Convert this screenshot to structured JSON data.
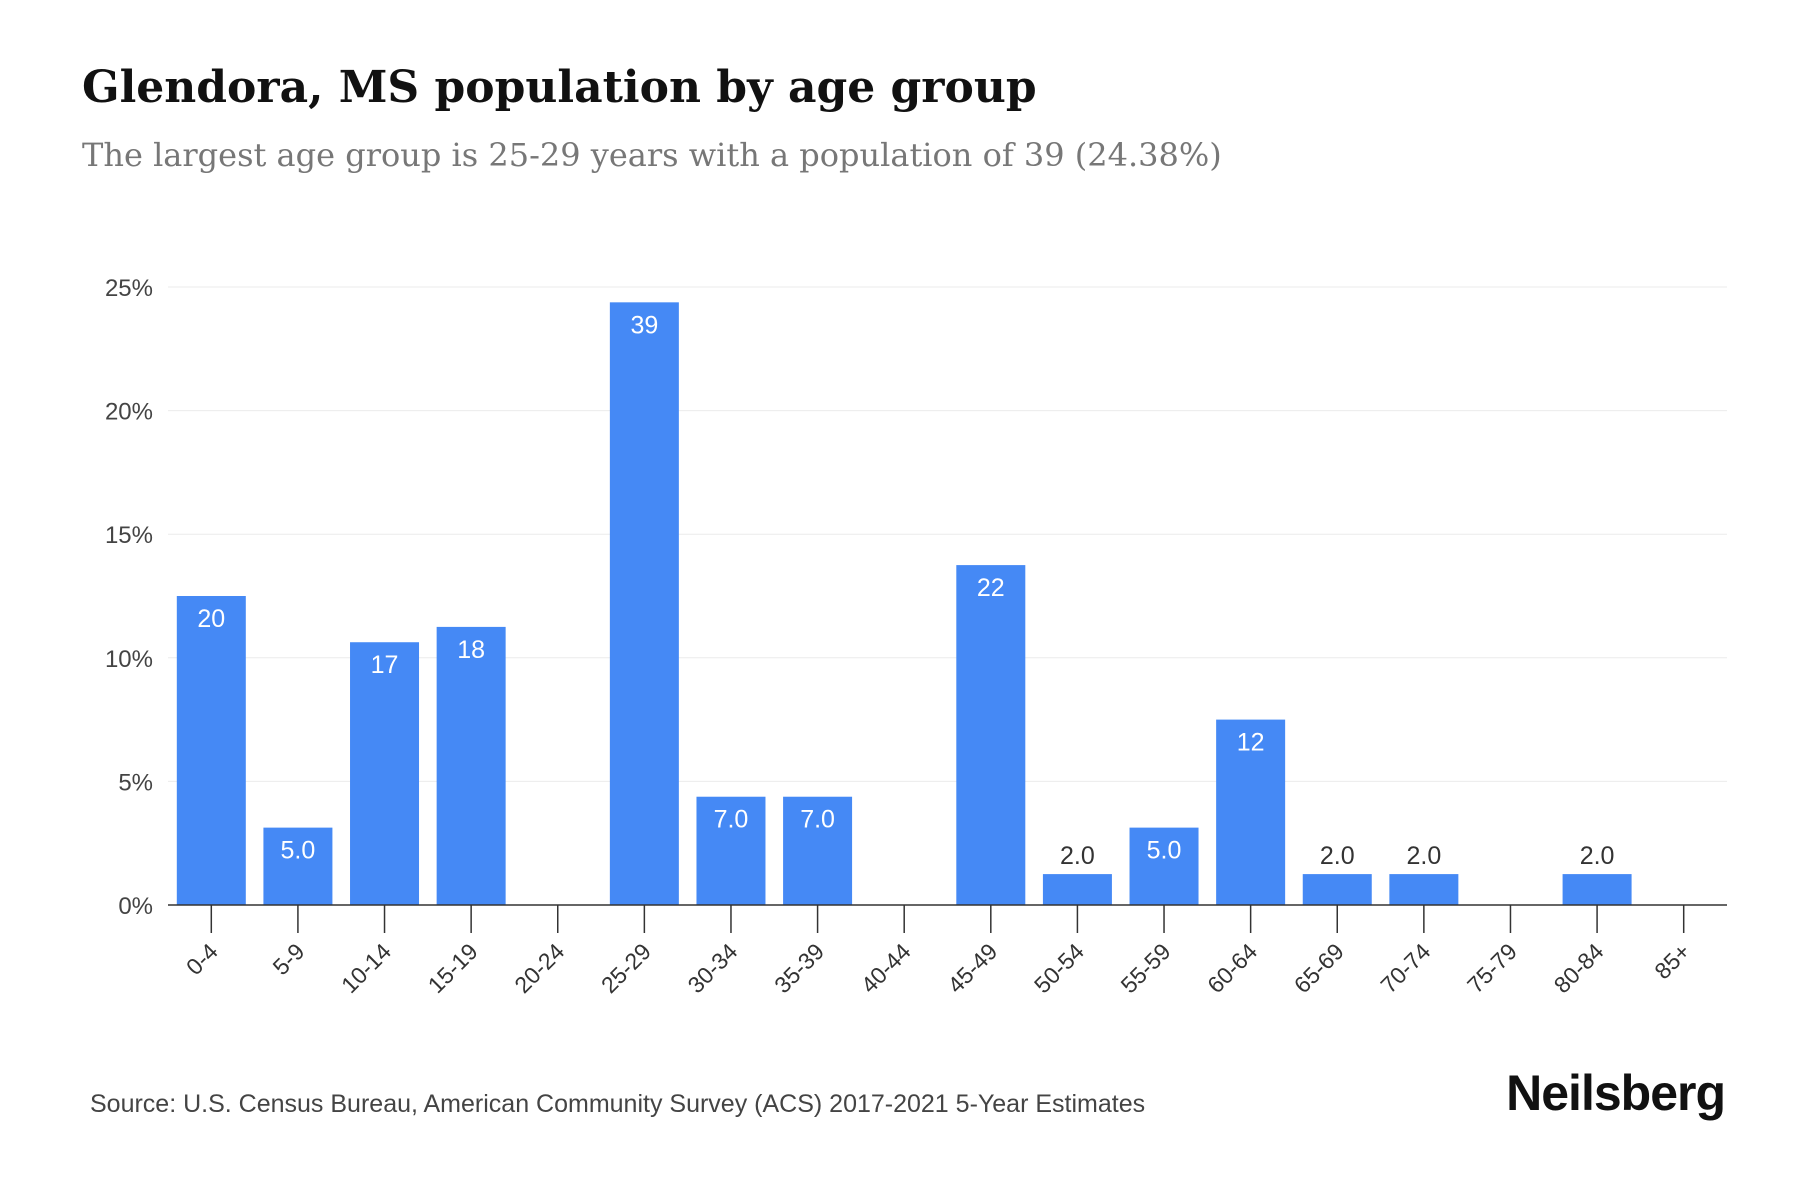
{
  "title": "Glendora, MS population by age group",
  "subtitle": "The largest age group is 25-29 years with a population of 39 (24.38%)",
  "source": "Source: U.S. Census Bureau, American Community Survey (ACS) 2017-2021 5-Year Estimates",
  "brand": "Neilsberg",
  "colors": {
    "bar": "#4589F5",
    "grid": "#EBEBEB",
    "axis": "#333333",
    "label_inside": "#FFFFFF",
    "label_outside": "#333333"
  },
  "chart_data": {
    "type": "bar",
    "categories": [
      "0-4",
      "5-9",
      "10-14",
      "15-19",
      "20-24",
      "25-29",
      "30-34",
      "35-39",
      "40-44",
      "45-49",
      "50-54",
      "55-59",
      "60-64",
      "65-69",
      "70-74",
      "75-79",
      "80-84",
      "85+"
    ],
    "values": [
      12.5,
      3.13,
      10.63,
      11.25,
      0,
      24.38,
      4.38,
      4.38,
      0,
      13.75,
      1.25,
      3.13,
      7.5,
      1.25,
      1.25,
      0,
      1.25,
      0
    ],
    "data_labels": [
      "20",
      "5.0",
      "17",
      "18",
      "",
      "39",
      "7.0",
      "7.0",
      "",
      "22",
      "2.0",
      "5.0",
      "12",
      "2.0",
      "2.0",
      "",
      "2.0",
      ""
    ],
    "y_ticks": [
      0,
      5,
      10,
      15,
      20,
      25
    ],
    "y_tick_labels": [
      "0%",
      "5%",
      "10%",
      "15%",
      "20%",
      "25%"
    ],
    "ylim": [
      0,
      25
    ],
    "grid": true,
    "xlabel": "",
    "ylabel": ""
  }
}
